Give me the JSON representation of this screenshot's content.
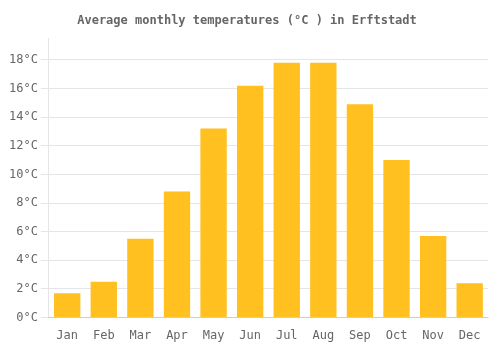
{
  "chart_data": {
    "type": "bar",
    "title": "Average monthly temperatures (°C ) in Erftstadt",
    "categories": [
      "Jan",
      "Feb",
      "Mar",
      "Apr",
      "May",
      "Jun",
      "Jul",
      "Aug",
      "Sep",
      "Oct",
      "Nov",
      "Dec"
    ],
    "values": [
      1.7,
      2.5,
      5.5,
      8.8,
      13.2,
      16.2,
      17.8,
      17.8,
      14.9,
      11.0,
      5.7,
      2.4
    ],
    "color": "#FFC020",
    "ylim": [
      0,
      19.5
    ],
    "yticks": [
      {
        "value": 0,
        "label": "0°C"
      },
      {
        "value": 2,
        "label": "2°C"
      },
      {
        "value": 4,
        "label": "4°C"
      },
      {
        "value": 6,
        "label": "6°C"
      },
      {
        "value": 8,
        "label": "8°C"
      },
      {
        "value": 10,
        "label": "10°C"
      },
      {
        "value": 12,
        "label": "12°C"
      },
      {
        "value": 14,
        "label": "14°C"
      },
      {
        "value": 16,
        "label": "16°C"
      },
      {
        "value": 18,
        "label": "18°C"
      }
    ],
    "grid": true
  }
}
